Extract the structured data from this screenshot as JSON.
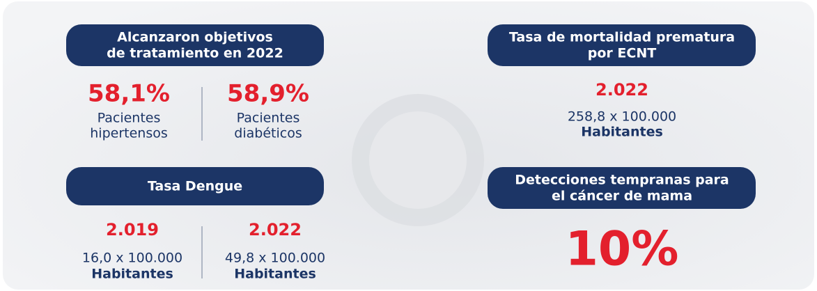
{
  "panels": [
    {
      "title": [
        "Alcanzaron objetivos",
        "de tratamiento en 2022"
      ],
      "items": [
        {
          "value": "58,1%",
          "label": [
            "Pacientes",
            "hipertensos"
          ]
        },
        {
          "value": "58,9%",
          "label": [
            "Pacientes",
            "diabéticos"
          ]
        }
      ]
    },
    {
      "title": [
        "Tasa de mortalidad prematura",
        "por ECNT"
      ],
      "items": [
        {
          "value": "2.022",
          "label": [
            "258,8 x 100.000",
            "Habitantes"
          ]
        }
      ]
    },
    {
      "title": [
        "Tasa Dengue"
      ],
      "items": [
        {
          "value": "2.019",
          "label": [
            "16,0 x 100.000",
            "Habitantes"
          ]
        },
        {
          "value": "2.022",
          "label": [
            "49,8 x 100.000",
            "Habitantes"
          ]
        }
      ]
    },
    {
      "title": [
        "Detecciones tempranas para",
        "el cáncer de mama"
      ],
      "items": [
        {
          "value": "10%"
        }
      ]
    }
  ]
}
